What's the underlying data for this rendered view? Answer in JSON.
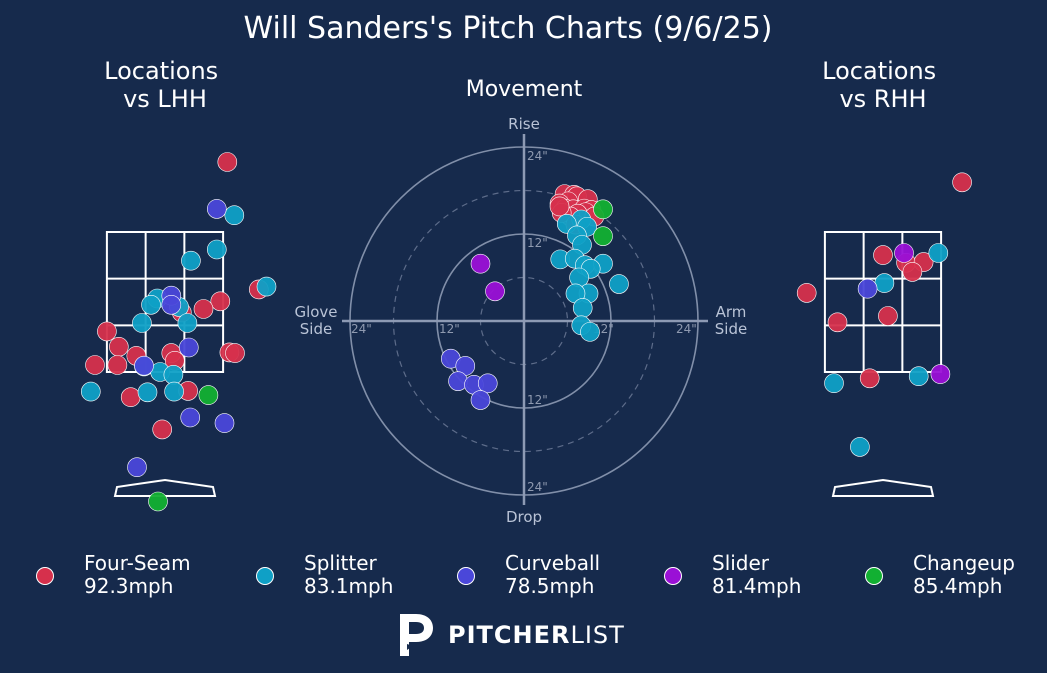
{
  "title": "Will Sanders's Pitch Charts (9/6/25)",
  "colors": {
    "background": "#162a4c",
    "four_seam": "#d6304c",
    "splitter": "#0fa0c6",
    "curveball": "#4a47d9",
    "slider": "#9a10d6",
    "changeup": "#12b032",
    "grid": "#ffffff",
    "polar_ring": "#8d9ab4"
  },
  "brand": {
    "name_bold": "PITCHER",
    "name_light": "LIST",
    "logo_icon": "pitcherlist-p-logo"
  },
  "legend": [
    {
      "name": "Four-Seam",
      "speed": "92.3mph",
      "color": "#d6304c"
    },
    {
      "name": "Splitter",
      "speed": "83.1mph",
      "color": "#0fa0c6"
    },
    {
      "name": "Curveball",
      "speed": "78.5mph",
      "color": "#4a47d9"
    },
    {
      "name": "Slider",
      "speed": "81.4mph",
      "color": "#9a10d6"
    },
    {
      "name": "Changeup",
      "speed": "85.4mph",
      "color": "#12b032"
    }
  ],
  "chart_data": [
    {
      "type": "scatter",
      "title": "Locations\nvs LHH",
      "note": "Pitch locations from catcher's view; strike zone 3x3 grid, x in feet from plate center, z in feet above ground",
      "zone": {
        "x": [
          -0.83,
          0.83
        ],
        "z": [
          1.5,
          3.5
        ]
      },
      "xlim": [
        -2.5,
        2.5
      ],
      "zlim": [
        -0.2,
        5.6
      ],
      "series": [
        {
          "name": "Four-Seam",
          "points": [
            [
              0.89,
              4.5
            ],
            [
              1.34,
              2.68
            ],
            [
              0.79,
              2.51
            ],
            [
              -0.66,
              1.86
            ],
            [
              -0.41,
              1.73
            ],
            [
              0.55,
              2.4
            ],
            [
              -0.83,
              2.08
            ],
            [
              -0.68,
              1.6
            ],
            [
              0.24,
              2.35
            ],
            [
              0.92,
              1.78
            ],
            [
              1.0,
              1.77
            ],
            [
              0.09,
              1.77
            ],
            [
              0.14,
              1.66
            ],
            [
              0.33,
              1.23
            ],
            [
              -0.49,
              1.14
            ],
            [
              -0.04,
              0.68
            ],
            [
              -1.0,
              1.6
            ]
          ]
        },
        {
          "name": "Splitter",
          "points": [
            [
              0.99,
              3.74
            ],
            [
              0.74,
              3.25
            ],
            [
              0.37,
              3.09
            ],
            [
              1.45,
              2.72
            ],
            [
              -0.11,
              2.55
            ],
            [
              -0.2,
              2.46
            ],
            [
              0.2,
              2.43
            ],
            [
              0.32,
              2.2
            ],
            [
              -0.33,
              2.2
            ],
            [
              -0.3,
              1.58
            ],
            [
              -0.07,
              1.5
            ],
            [
              0.12,
              1.46
            ],
            [
              0.13,
              1.22
            ],
            [
              -0.25,
              1.21
            ],
            [
              -1.06,
              1.22
            ]
          ]
        },
        {
          "name": "Curveball",
          "points": [
            [
              0.74,
              3.83
            ],
            [
              0.09,
              2.59
            ],
            [
              0.09,
              2.46
            ],
            [
              0.34,
              1.85
            ],
            [
              -0.3,
              1.59
            ],
            [
              0.36,
              0.85
            ],
            [
              0.85,
              0.77
            ],
            [
              -0.4,
              0.14
            ]
          ]
        },
        {
          "name": "Changeup",
          "points": [
            [
              0.62,
              1.17
            ],
            [
              -0.1,
              -0.35
            ]
          ]
        }
      ]
    },
    {
      "type": "scatter",
      "title": "Movement",
      "note": "Polar movement plot, x = horizontal break (Glove Side negative, Arm Side positive), y = induced vertical break, inches",
      "xlabel_left": "Glove\nSide",
      "xlabel_right": "Arm\nSide",
      "ylabel_top": "Rise",
      "ylabel_bottom": "Drop",
      "rings": [
        6,
        12,
        18,
        24
      ],
      "ring_labels_top": [
        "24\"",
        "12\""
      ],
      "ring_labels_bottom": [
        "12\"",
        "24\""
      ],
      "ring_labels_left": [
        "24\"",
        "12\""
      ],
      "ring_labels_right": [
        "12\"",
        "24\""
      ],
      "xlim": [
        -24,
        24
      ],
      "ylim": [
        -24,
        24
      ],
      "series": [
        {
          "name": "Four-Seam",
          "points": [
            [
              5.6,
              17.5
            ],
            [
              6.9,
              17.4
            ],
            [
              7.3,
              17.2
            ],
            [
              8.8,
              16.8
            ],
            [
              6.1,
              16.5
            ],
            [
              4.9,
              16.2
            ],
            [
              5.7,
              15.5
            ],
            [
              6.8,
              15.4
            ],
            [
              8.3,
              15.5
            ],
            [
              9.3,
              15.3
            ],
            [
              8.5,
              15.0
            ],
            [
              7.4,
              14.8
            ],
            [
              6.4,
              14.4
            ],
            [
              5.2,
              14.9
            ],
            [
              4.9,
              15.8
            ],
            [
              9.7,
              14.4
            ],
            [
              7.1,
              13.3
            ]
          ]
        },
        {
          "name": "Splitter",
          "points": [
            [
              7.9,
              14.0
            ],
            [
              5.9,
              13.4
            ],
            [
              8.7,
              13.0
            ],
            [
              7.3,
              11.8
            ],
            [
              8.0,
              10.5
            ],
            [
              5.0,
              8.5
            ],
            [
              7.0,
              8.6
            ],
            [
              8.4,
              7.7
            ],
            [
              10.9,
              7.9
            ],
            [
              9.2,
              7.2
            ],
            [
              7.6,
              6.0
            ],
            [
              13.1,
              5.1
            ],
            [
              8.9,
              3.8
            ],
            [
              7.1,
              3.8
            ],
            [
              8.1,
              1.8
            ],
            [
              7.9,
              -0.6
            ],
            [
              9.1,
              -1.5
            ]
          ]
        },
        {
          "name": "Curveball",
          "points": [
            [
              -10.1,
              -5.2
            ],
            [
              -8.1,
              -6.2
            ],
            [
              -9.1,
              -8.3
            ],
            [
              -6.9,
              -8.8
            ],
            [
              -5.0,
              -8.6
            ],
            [
              -6.0,
              -10.9
            ]
          ]
        },
        {
          "name": "Slider",
          "points": [
            [
              -6.0,
              7.9
            ],
            [
              -4.0,
              4.1
            ]
          ]
        },
        {
          "name": "Changeup",
          "points": [
            [
              10.9,
              15.4
            ],
            [
              10.9,
              11.7
            ]
          ]
        }
      ]
    },
    {
      "type": "scatter",
      "title": "Locations\nvs RHH",
      "note": "Pitch locations from catcher's view; strike zone 3x3 grid, x in feet from plate center, z in feet above ground",
      "zone": {
        "x": [
          -0.83,
          0.83
        ],
        "z": [
          1.5,
          3.5
        ]
      },
      "xlim": [
        -2.5,
        2.5
      ],
      "zlim": [
        -0.2,
        5.6
      ],
      "series": [
        {
          "name": "Four-Seam",
          "points": [
            [
              1.13,
              4.21
            ],
            [
              -1.09,
              2.63
            ],
            [
              0.0,
              3.17
            ],
            [
              0.33,
              3.06
            ],
            [
              0.58,
              3.07
            ],
            [
              0.42,
              2.93
            ],
            [
              -0.65,
              2.21
            ],
            [
              0.07,
              2.3
            ],
            [
              -0.19,
              1.41
            ]
          ]
        },
        {
          "name": "Splitter",
          "points": [
            [
              0.79,
              3.2
            ],
            [
              0.02,
              2.77
            ],
            [
              0.51,
              1.44
            ],
            [
              -0.7,
              1.34
            ],
            [
              -0.33,
              0.43
            ]
          ]
        },
        {
          "name": "Curveball",
          "points": [
            [
              -0.22,
              2.69
            ]
          ]
        },
        {
          "name": "Slider",
          "points": [
            [
              0.3,
              3.2
            ],
            [
              0.82,
              1.47
            ]
          ]
        }
      ]
    }
  ]
}
